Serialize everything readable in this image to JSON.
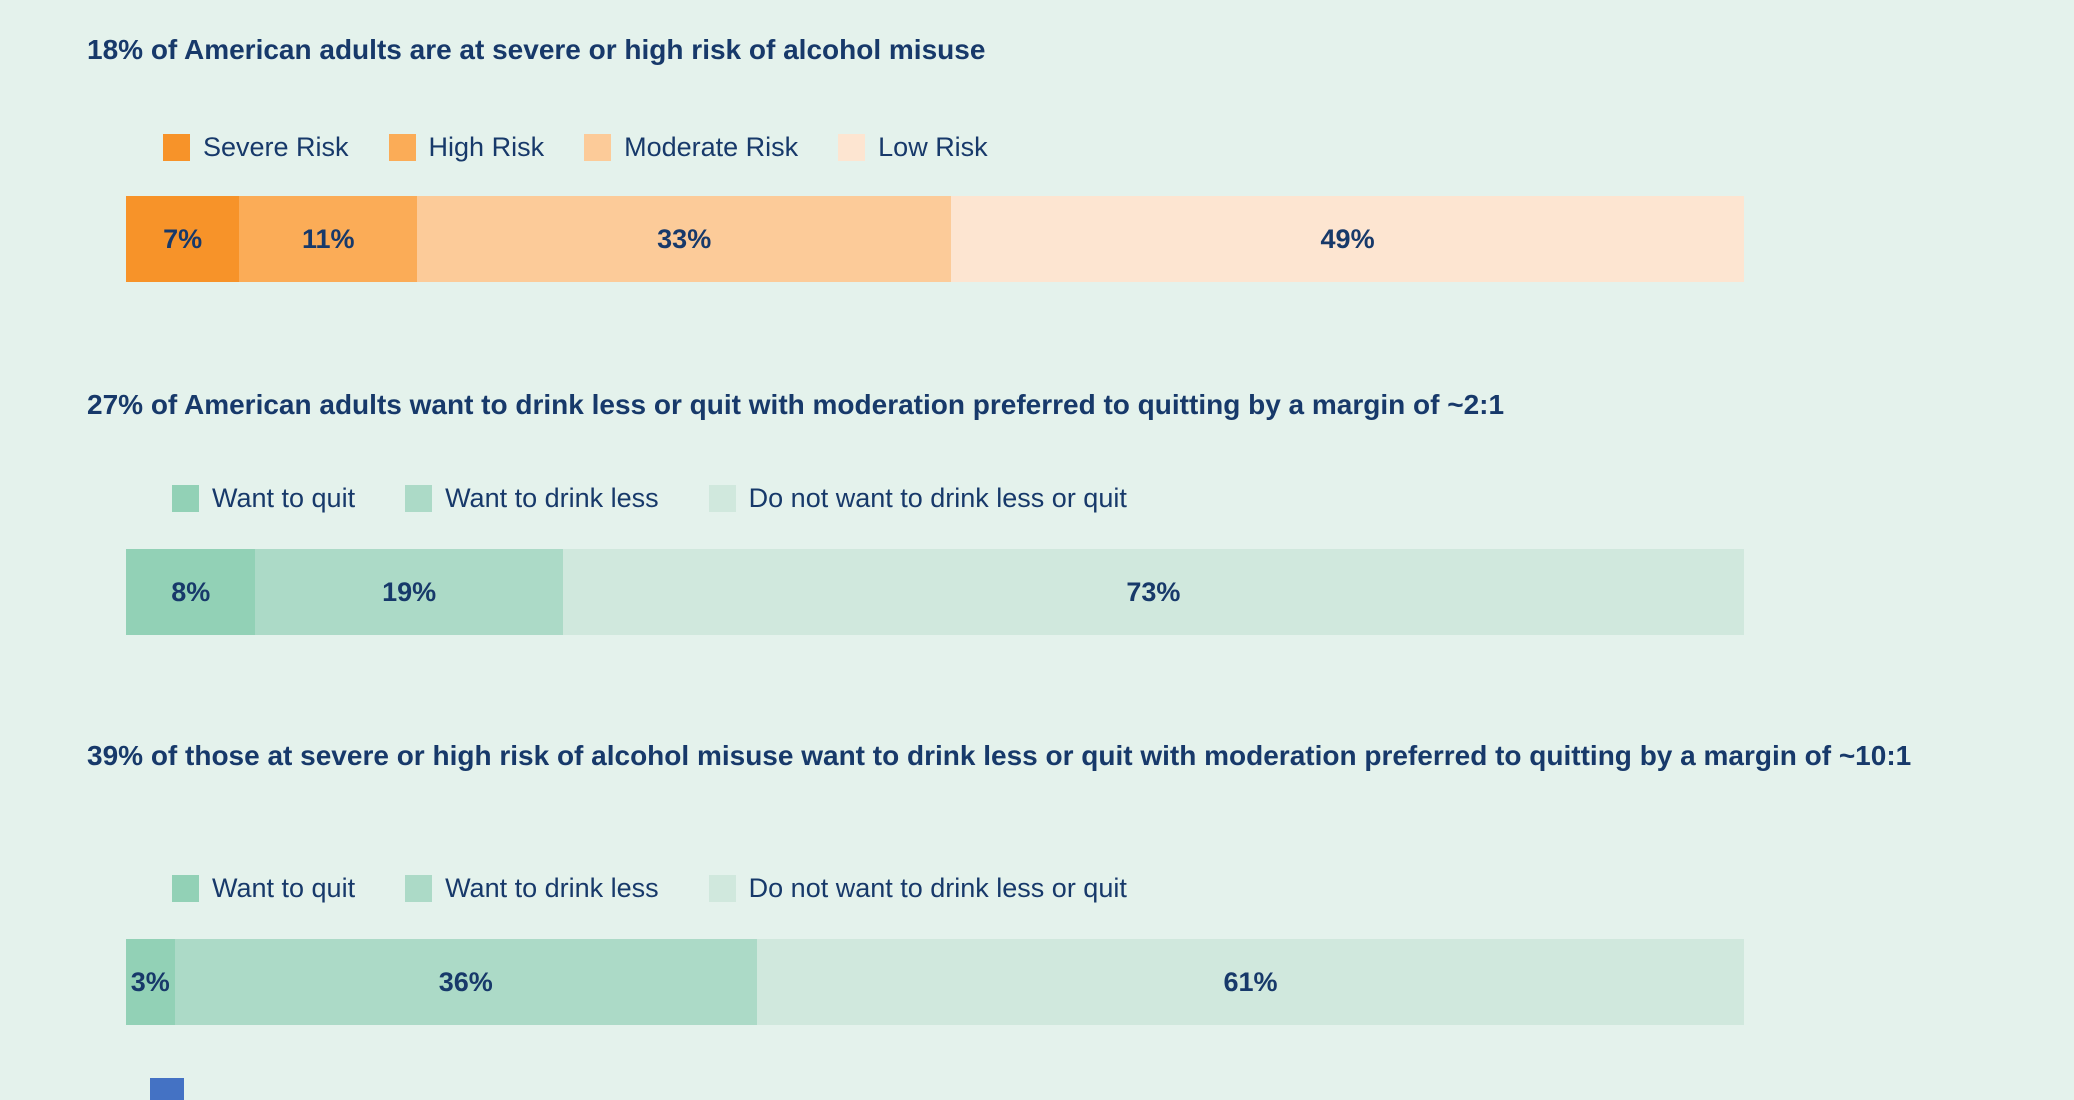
{
  "page": {
    "colors": {
      "background": "#e4f2ec",
      "text": "#17396a",
      "partial_blue_block": "#4472c4"
    }
  },
  "chart_data": [
    {
      "type": "bar",
      "variant": "stacked-horizontal",
      "title": "18% of American adults are at severe or high risk of alcohol misuse",
      "categories": [
        "Severe Risk",
        "High Risk",
        "Moderate Risk",
        "Low Risk"
      ],
      "values": [
        7,
        11,
        33,
        49
      ],
      "value_labels": [
        "7%",
        "11%",
        "33%",
        "49%"
      ],
      "colors": [
        "#f79329",
        "#fbac57",
        "#fccb99",
        "#fde5d1"
      ],
      "unit": "%",
      "xlim": [
        0,
        100
      ],
      "legend_position": "top",
      "grid": false
    },
    {
      "type": "bar",
      "variant": "stacked-horizontal",
      "title": "27% of American adults want to drink less or quit with moderation preferred to quitting by a margin of ~2:1",
      "categories": [
        "Want to quit",
        "Want to drink less",
        "Do not want to drink less or quit"
      ],
      "values": [
        8,
        19,
        73
      ],
      "value_labels": [
        "8%",
        "19%",
        "73%"
      ],
      "colors": [
        "#92d1b6",
        "#acdac7",
        "#d0e8dd"
      ],
      "unit": "%",
      "xlim": [
        0,
        100
      ],
      "legend_position": "top",
      "grid": false
    },
    {
      "type": "bar",
      "variant": "stacked-horizontal",
      "title": "39% of those at severe or high risk of alcohol misuse want to drink less or quit with moderation preferred to quitting by a margin of ~10:1",
      "categories": [
        "Want to quit",
        "Want to drink less",
        "Do not want to drink less or quit"
      ],
      "values": [
        3,
        36,
        61
      ],
      "value_labels": [
        "3%",
        "36%",
        "61%"
      ],
      "colors": [
        "#92d1b6",
        "#acdac7",
        "#d0e8dd"
      ],
      "unit": "%",
      "xlim": [
        0,
        100
      ],
      "legend_position": "top",
      "grid": false
    }
  ]
}
